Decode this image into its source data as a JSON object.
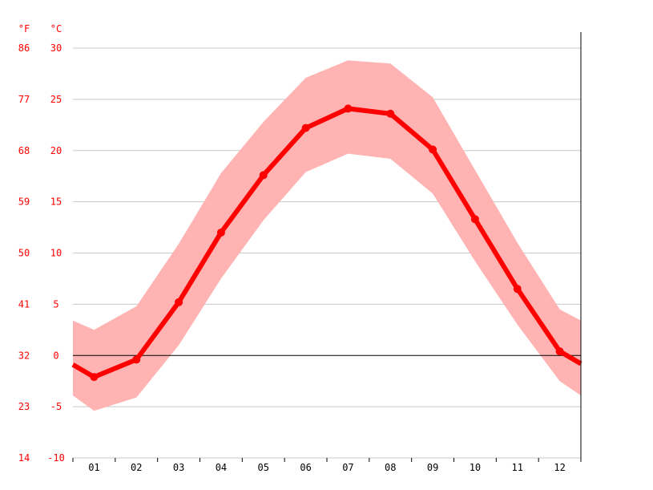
{
  "chart_data": {
    "type": "line",
    "units": {
      "fahrenheit": "°F",
      "celsius": "°C"
    },
    "categories": [
      "01",
      "02",
      "03",
      "04",
      "05",
      "06",
      "07",
      "08",
      "09",
      "10",
      "11",
      "12"
    ],
    "y_ticks_c": [
      30,
      25,
      20,
      15,
      10,
      5,
      0,
      -5,
      -10
    ],
    "y_ticks_f": [
      86,
      77,
      68,
      59,
      50,
      41,
      32,
      23,
      14
    ],
    "ylim": [
      -10,
      30
    ],
    "grid": true,
    "series": [
      {
        "mean": [
          -2.1,
          -0.4,
          5.2,
          12.0,
          17.6,
          22.2,
          24.1,
          23.6,
          20.1,
          13.3,
          6.5,
          0.4
        ]
      },
      {
        "max": [
          2.5,
          4.8,
          10.9,
          17.8,
          22.8,
          27.1,
          28.8,
          28.5,
          25.2,
          18.1,
          11.0,
          4.5
        ]
      },
      {
        "min": [
          -5.4,
          -4.1,
          1.0,
          7.5,
          13.2,
          17.9,
          19.7,
          19.2,
          15.8,
          9.2,
          3.0,
          -2.5
        ]
      }
    ],
    "edge_values": {
      "mean": [
        -0.9,
        -0.8
      ],
      "max": [
        3.4,
        3.4
      ],
      "min": [
        -3.9,
        -3.9
      ]
    },
    "colors": {
      "line": "#ff0000",
      "band": "#ffb3b3",
      "axis_text": "#ff0000",
      "grid": "#c8c8c8",
      "zero_line": "#000000"
    }
  }
}
